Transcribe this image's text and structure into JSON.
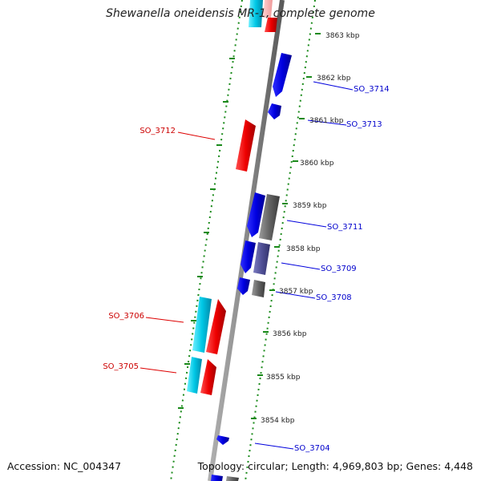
{
  "title": "Shewanella oneidensis MR-1, complete genome",
  "footer": {
    "accession": "Accession: NC_004347",
    "summary": "Topology: circular; Length: 4,969,803 bp; Genes: 4,448"
  },
  "colors": {
    "forward_gene": "#ff0000",
    "reverse_gene": "#0000e6",
    "cyan_feature": "#00c8e6",
    "gray_feature": "#646464",
    "purple_feature": "#505096",
    "backbone": "#8c8c8c",
    "ruler_dots": "#1a8a1a",
    "forward_label": "#cc0000",
    "reverse_label": "#0000cc"
  },
  "scale_labels": [
    "3863 kbp",
    "3862 kbp",
    "3861 kbp",
    "3860 kbp",
    "3859 kbp",
    "3858 kbp",
    "3857 kbp",
    "3856 kbp",
    "3855 kbp",
    "3854 kbp"
  ],
  "gene_labels": {
    "forward": [
      "SO_3712",
      "SO_3706",
      "SO_3705"
    ],
    "reverse": [
      "SO_3714",
      "SO_3713",
      "SO_3711",
      "SO_3709",
      "SO_3708",
      "SO_3704"
    ]
  }
}
